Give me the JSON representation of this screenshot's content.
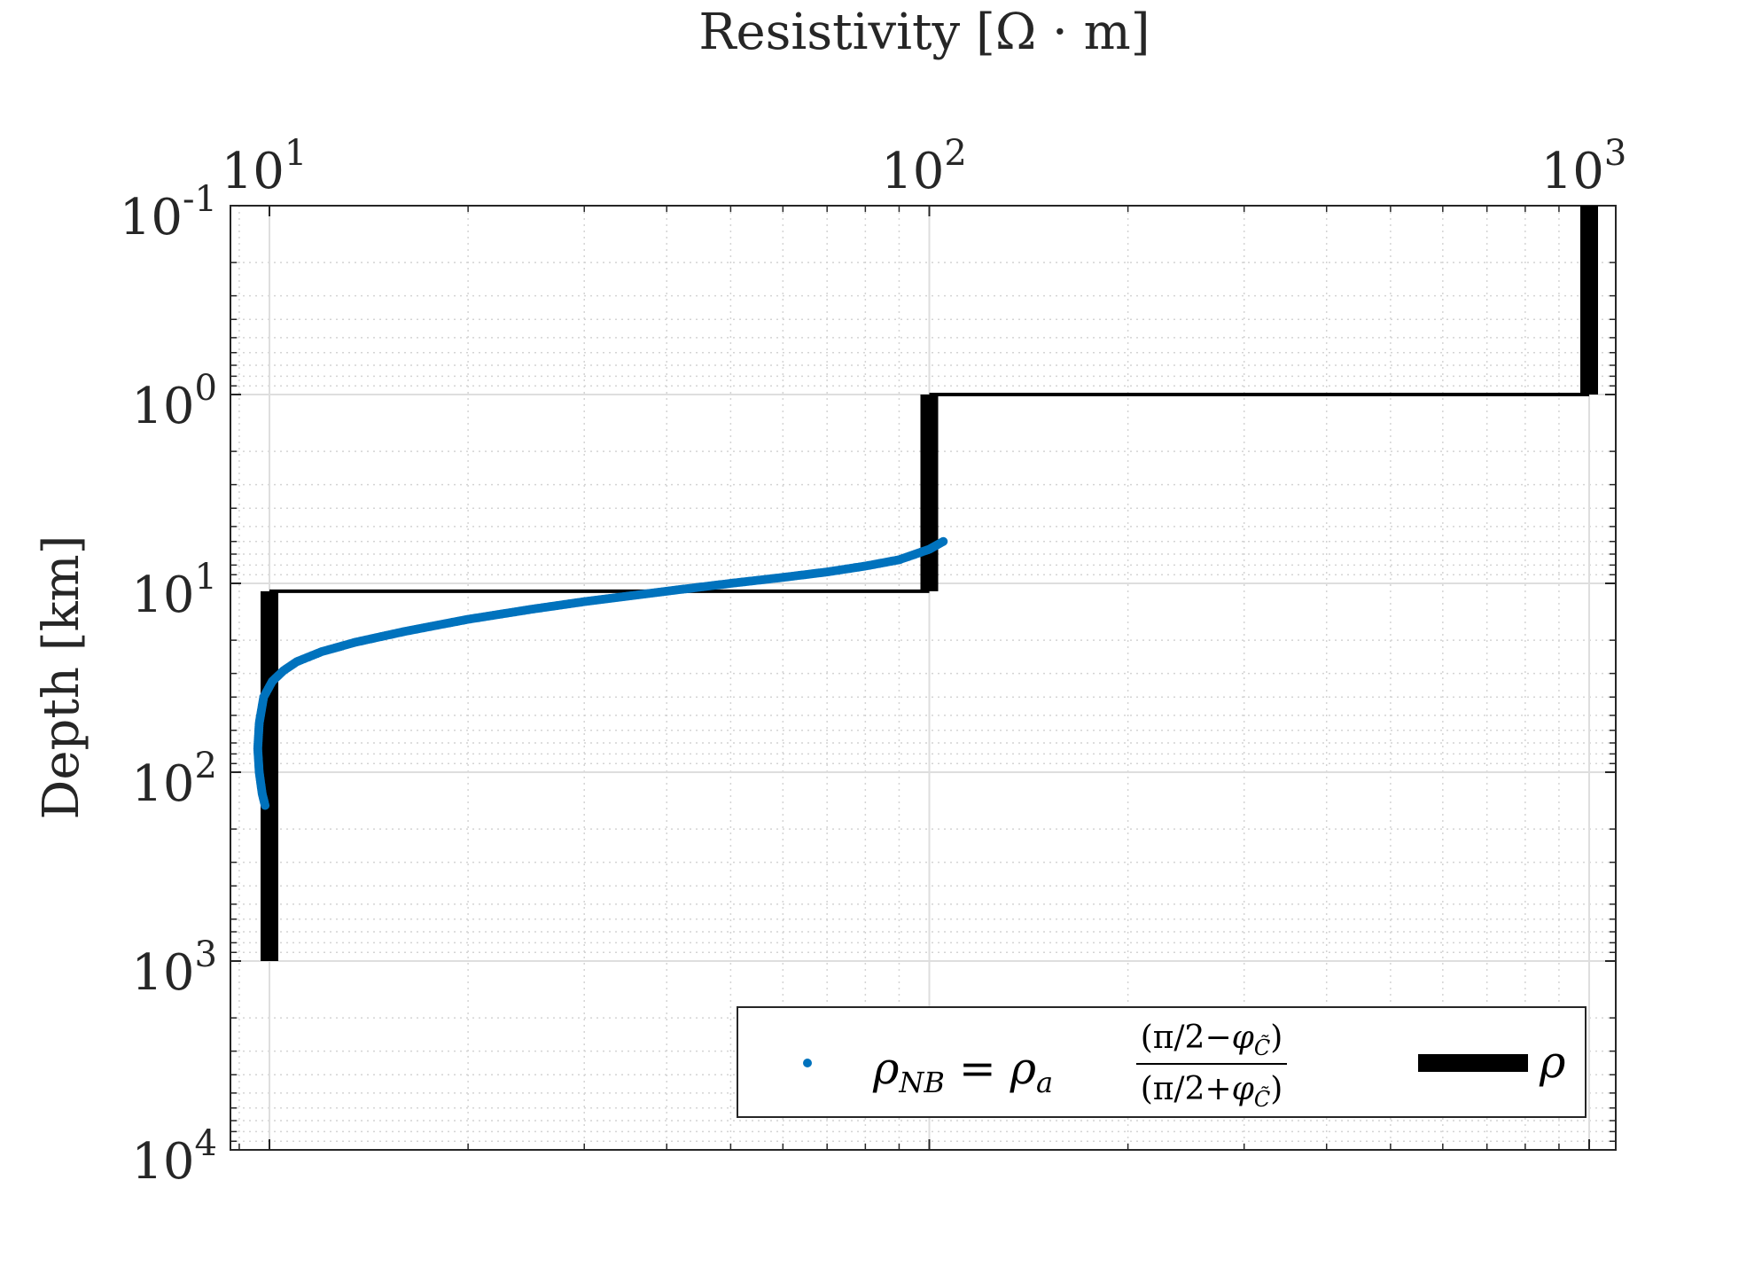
{
  "chart_data": {
    "type": "line",
    "xlabel": "Resistivity [Ω · m]",
    "ylabel": "Depth [km]",
    "x_scale": "log",
    "y_scale": "log",
    "y_reversed": true,
    "xlim": [
      8.8,
      1040
    ],
    "ylim": [
      0.1,
      10000
    ],
    "x_axis_position": "top",
    "grid": true,
    "minor_grid": true,
    "x_ticks": [
      {
        "value": 10,
        "base": "10",
        "exp": "1"
      },
      {
        "value": 100,
        "base": "10",
        "exp": "2"
      },
      {
        "value": 1000,
        "base": "10",
        "exp": "3"
      }
    ],
    "y_ticks": [
      {
        "value": 0.1,
        "base": "10",
        "exp": "-1"
      },
      {
        "value": 1,
        "base": "10",
        "exp": "0"
      },
      {
        "value": 10,
        "base": "10",
        "exp": "1"
      },
      {
        "value": 100,
        "base": "10",
        "exp": "2"
      },
      {
        "value": 1000,
        "base": "10",
        "exp": "3"
      },
      {
        "value": 10000,
        "base": "10",
        "exp": "4"
      }
    ],
    "series": [
      {
        "name": "ρNB = ρa (π/2−φC̃)/(π/2+φC̃)",
        "style": "dots",
        "color": "#0072BD",
        "points": [
          [
            105,
            6.0
          ],
          [
            100,
            6.6
          ],
          [
            90,
            7.5
          ],
          [
            80,
            8.1
          ],
          [
            70,
            8.7
          ],
          [
            60,
            9.3
          ],
          [
            50,
            10.0
          ],
          [
            40,
            11.0
          ],
          [
            30,
            12.5
          ],
          [
            25,
            13.7
          ],
          [
            20,
            15.5
          ],
          [
            16,
            18.0
          ],
          [
            13.5,
            20.5
          ],
          [
            12,
            23.0
          ],
          [
            11,
            26.0
          ],
          [
            10.5,
            29.0
          ],
          [
            10.1,
            33.0
          ],
          [
            9.8,
            40.0
          ],
          [
            9.65,
            55.0
          ],
          [
            9.6,
            75.0
          ],
          [
            9.65,
            100.0
          ],
          [
            9.75,
            130.0
          ],
          [
            9.85,
            150.0
          ]
        ]
      },
      {
        "name": "ρ",
        "style": "step",
        "color": "#000000",
        "layers": [
          {
            "resistivity": 1000,
            "top": 0.1,
            "bottom": 1
          },
          {
            "resistivity": 100,
            "top": 1,
            "bottom": 11
          },
          {
            "resistivity": 10,
            "top": 11,
            "bottom": 1000
          }
        ]
      }
    ],
    "legend": {
      "position": "bottom-right",
      "entries": [
        {
          "series": "ρNB",
          "label": "ρNB = ρa (π/2−φC̃)/(π/2+φC̃)"
        },
        {
          "series": "ρ",
          "label": "ρ"
        }
      ]
    }
  }
}
